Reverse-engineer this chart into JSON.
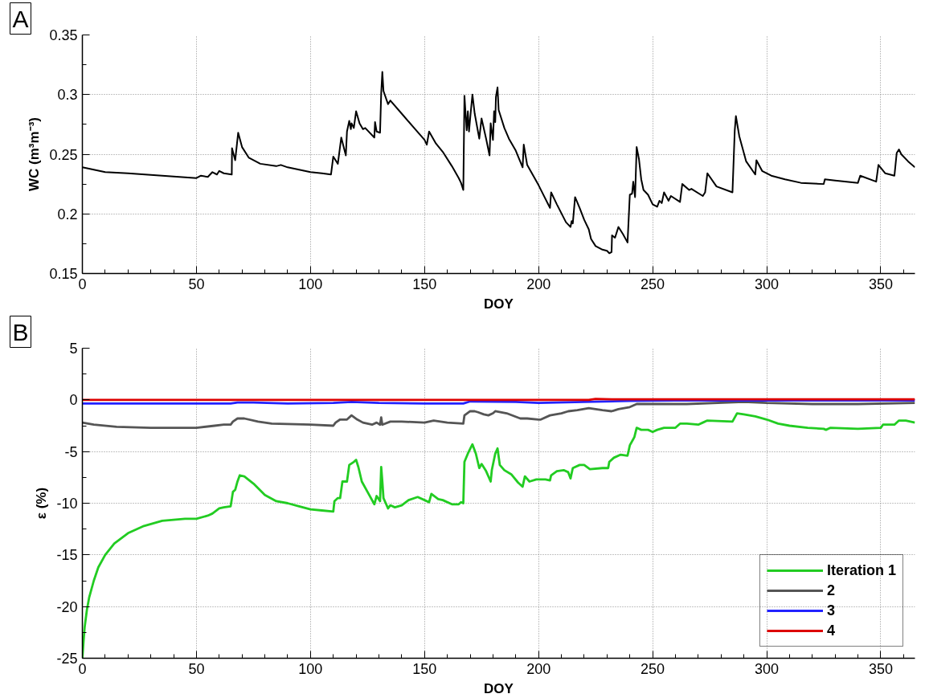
{
  "chart_data": [
    {
      "type": "line",
      "title": "A",
      "xlabel": "DOY",
      "ylabel": "WC (m³m⁻³)",
      "xlim": [
        0,
        365
      ],
      "ylim": [
        0.15,
        0.35
      ],
      "xticks": [
        0,
        {
          "value": 10,
          "label": null
        },
        {
          "value": 20,
          "label": null
        },
        {
          "value": 30,
          "label": null
        },
        {
          "value": 40,
          "label": null
        },
        50,
        {
          "value": 60,
          "label": null
        },
        {
          "value": 70,
          "label": null
        },
        {
          "value": 80,
          "label": null
        },
        {
          "value": 90,
          "label": null
        },
        100,
        {
          "value": 110,
          "label": null
        },
        {
          "value": 120,
          "label": null
        },
        {
          "value": 130,
          "label": null
        },
        {
          "value": 140,
          "label": null
        },
        150,
        {
          "value": 160,
          "label": null
        },
        {
          "value": 170,
          "label": null
        },
        {
          "value": 180,
          "label": null
        },
        {
          "value": 190,
          "label": null
        },
        200,
        {
          "value": 210,
          "label": null
        },
        {
          "value": 220,
          "label": null
        },
        {
          "value": 230,
          "label": null
        },
        {
          "value": 240,
          "label": null
        },
        250,
        {
          "value": 260,
          "label": null
        },
        {
          "value": 270,
          "label": null
        },
        {
          "value": 280,
          "label": null
        },
        {
          "value": 290,
          "label": null
        },
        300,
        {
          "value": 310,
          "label": null
        },
        {
          "value": 320,
          "label": null
        },
        {
          "value": 330,
          "label": null
        },
        {
          "value": 340,
          "label": null
        },
        350,
        {
          "value": 360,
          "label": null
        }
      ],
      "yticks": [
        0.15,
        {
          "value": 0.175,
          "label": null
        },
        0.2,
        {
          "value": 0.225,
          "label": null
        },
        0.25,
        {
          "value": 0.275,
          "label": null
        },
        0.3,
        {
          "value": 0.325,
          "label": null
        },
        0.35
      ],
      "grid": true,
      "x": [
        0,
        10,
        20,
        35,
        50,
        52,
        55,
        57,
        59,
        60,
        62,
        65.5,
        65.6,
        67,
        68.3,
        70,
        73,
        78,
        85,
        87,
        90,
        100,
        105,
        109,
        110,
        112,
        113.5,
        115.5,
        116,
        117,
        117.7,
        118,
        119,
        120,
        121.5,
        123,
        124,
        128,
        128.3,
        129,
        130.5,
        131,
        131.5,
        132,
        134,
        135,
        140,
        145,
        150,
        151,
        152,
        155,
        158,
        162,
        165,
        166,
        167,
        167.5,
        168,
        168.5,
        169,
        169.5,
        170.2,
        171,
        172,
        174,
        175,
        177,
        178.5,
        179,
        180,
        180.5,
        181,
        181.3,
        182,
        182.5,
        185,
        187,
        190,
        193,
        193.5,
        195,
        200,
        205,
        205.5,
        208,
        212,
        214,
        214.5,
        215,
        216,
        218,
        220,
        222,
        223,
        225,
        228,
        230,
        231,
        232,
        232.2,
        233.5,
        235,
        237,
        239,
        240,
        241,
        241.5,
        242,
        242.3,
        243,
        244,
        245,
        246,
        248,
        250,
        252,
        253,
        254,
        255,
        257,
        258,
        262,
        263,
        266,
        267,
        272,
        273,
        274,
        278,
        285,
        286,
        286.5,
        288,
        291,
        295,
        295.5,
        298,
        302,
        308,
        315,
        325,
        325.5,
        330,
        340,
        341,
        348,
        349,
        352,
        356,
        357,
        358,
        359,
        362,
        365
      ],
      "series": [
        {
          "color": "#000000",
          "values": [
            0.239,
            0.235,
            0.234,
            0.232,
            0.23,
            0.232,
            0.231,
            0.235,
            0.233,
            0.236,
            0.234,
            0.233,
            0.255,
            0.245,
            0.268,
            0.256,
            0.247,
            0.242,
            0.24,
            0.241,
            0.239,
            0.235,
            0.234,
            0.233,
            0.248,
            0.242,
            0.264,
            0.249,
            0.269,
            0.278,
            0.271,
            0.276,
            0.272,
            0.286,
            0.276,
            0.271,
            0.272,
            0.264,
            0.277,
            0.269,
            0.268,
            0.301,
            0.319,
            0.303,
            0.292,
            0.295,
            0.284,
            0.273,
            0.262,
            0.258,
            0.269,
            0.259,
            0.252,
            0.24,
            0.23,
            0.226,
            0.22,
            0.299,
            0.284,
            0.27,
            0.286,
            0.269,
            0.284,
            0.3,
            0.284,
            0.263,
            0.28,
            0.263,
            0.249,
            0.276,
            0.262,
            0.286,
            0.277,
            0.298,
            0.306,
            0.287,
            0.272,
            0.263,
            0.253,
            0.239,
            0.258,
            0.241,
            0.224,
            0.205,
            0.218,
            0.208,
            0.193,
            0.189,
            0.194,
            0.192,
            0.214,
            0.205,
            0.195,
            0.187,
            0.179,
            0.173,
            0.17,
            0.169,
            0.167,
            0.168,
            0.182,
            0.18,
            0.189,
            0.183,
            0.176,
            0.216,
            0.217,
            0.227,
            0.219,
            0.214,
            0.256,
            0.246,
            0.229,
            0.22,
            0.216,
            0.208,
            0.206,
            0.211,
            0.209,
            0.218,
            0.211,
            0.215,
            0.21,
            0.225,
            0.22,
            0.221,
            0.215,
            0.218,
            0.234,
            0.223,
            0.218,
            0.27,
            0.282,
            0.265,
            0.244,
            0.233,
            0.245,
            0.236,
            0.232,
            0.229,
            0.226,
            0.225,
            0.229,
            0.228,
            0.226,
            0.232,
            0.227,
            0.241,
            0.234,
            0.232,
            0.251,
            0.254,
            0.25,
            0.244,
            0.239
          ]
        }
      ]
    },
    {
      "type": "line",
      "title": "B",
      "xlabel": "DOY",
      "ylabel": "ε (%)",
      "xlim": [
        0,
        365
      ],
      "ylim": [
        -25,
        5
      ],
      "xticks": [
        0,
        {
          "value": 10,
          "label": null
        },
        {
          "value": 20,
          "label": null
        },
        {
          "value": 30,
          "label": null
        },
        {
          "value": 40,
          "label": null
        },
        50,
        {
          "value": 60,
          "label": null
        },
        {
          "value": 70,
          "label": null
        },
        {
          "value": 80,
          "label": null
        },
        {
          "value": 90,
          "label": null
        },
        100,
        {
          "value": 110,
          "label": null
        },
        {
          "value": 120,
          "label": null
        },
        {
          "value": 130,
          "label": null
        },
        {
          "value": 140,
          "label": null
        },
        150,
        {
          "value": 160,
          "label": null
        },
        {
          "value": 170,
          "label": null
        },
        {
          "value": 180,
          "label": null
        },
        {
          "value": 190,
          "label": null
        },
        200,
        {
          "value": 210,
          "label": null
        },
        {
          "value": 220,
          "label": null
        },
        {
          "value": 230,
          "label": null
        },
        {
          "value": 240,
          "label": null
        },
        250,
        {
          "value": 260,
          "label": null
        },
        {
          "value": 270,
          "label": null
        },
        {
          "value": 280,
          "label": null
        },
        {
          "value": 290,
          "label": null
        },
        300,
        {
          "value": 310,
          "label": null
        },
        {
          "value": 320,
          "label": null
        },
        {
          "value": 330,
          "label": null
        },
        {
          "value": 340,
          "label": null
        },
        350,
        {
          "value": 360,
          "label": null
        }
      ],
      "yticks": [
        -25,
        {
          "value": -22.5,
          "label": null
        },
        -20,
        {
          "value": -17.5,
          "label": null
        },
        -15,
        {
          "value": -12.5,
          "label": null
        },
        -10,
        {
          "value": -7.5,
          "label": null
        },
        -5,
        {
          "value": -2.5,
          "label": null
        },
        0,
        {
          "value": 2.5,
          "label": null
        },
        5
      ],
      "grid": true,
      "legend": "bottom right",
      "series": [
        {
          "name": "Iteration 1",
          "color": "#22cc22",
          "x": [
            0,
            0.5,
            1,
            2,
            3,
            5,
            7,
            10,
            14,
            20,
            27,
            35,
            45,
            50,
            55,
            57,
            60,
            62,
            65,
            65.5,
            66,
            67,
            68,
            69,
            71,
            75,
            80,
            85,
            90,
            95,
            100,
            105,
            110,
            110.5,
            112,
            113,
            114,
            116,
            117,
            119,
            120,
            121,
            122.5,
            125,
            128,
            129,
            130.5,
            131,
            131.5,
            132,
            133,
            134,
            135,
            137,
            140,
            143,
            147,
            150,
            152,
            153,
            156,
            158,
            162,
            165,
            166,
            167,
            167.5,
            169,
            171,
            172.5,
            174,
            175,
            177,
            179,
            179.5,
            181,
            182,
            183,
            185,
            188,
            191,
            193,
            194,
            196,
            199,
            203,
            205,
            205.5,
            208,
            211,
            213,
            214,
            215,
            218,
            220,
            222.5,
            228,
            230.5,
            231,
            233,
            236,
            239,
            240,
            241.5,
            242,
            243,
            245,
            248,
            250,
            252,
            255,
            260,
            262,
            265,
            270,
            272,
            274,
            285,
            287,
            290,
            295,
            300,
            305,
            310,
            318,
            325,
            326,
            328,
            340,
            350,
            351,
            356,
            358,
            361,
            365
          ],
          "values": [
            -25,
            -23.4,
            -22,
            -20.3,
            -19.1,
            -17.5,
            -16.2,
            -15,
            -13.9,
            -12.9,
            -12.2,
            -11.7,
            -11.5,
            -11.5,
            -11.2,
            -11,
            -10.5,
            -10.4,
            -10.3,
            -9.6,
            -8.9,
            -8.7,
            -7.9,
            -7.3,
            -7.4,
            -8.1,
            -9.2,
            -9.8,
            -10,
            -10.3,
            -10.6,
            -10.7,
            -10.8,
            -9.8,
            -9.5,
            -9.5,
            -7.9,
            -7.9,
            -6.3,
            -6,
            -5.8,
            -6.5,
            -7.9,
            -8.9,
            -10.1,
            -9.3,
            -9.8,
            -6.5,
            -7.9,
            -9.5,
            -10,
            -10.5,
            -10.2,
            -10.4,
            -10.2,
            -9.7,
            -9.4,
            -9.7,
            -9.9,
            -9.1,
            -9.6,
            -9.7,
            -10.1,
            -10.1,
            -9.9,
            -10,
            -6,
            -5.2,
            -4.3,
            -5.2,
            -6.6,
            -6.2,
            -6.9,
            -7.9,
            -6.8,
            -5.2,
            -4.7,
            -6.3,
            -6.8,
            -7.2,
            -8,
            -8.4,
            -7.4,
            -7.9,
            -7.7,
            -7.7,
            -7.8,
            -7.3,
            -6.9,
            -6.8,
            -7,
            -7.6,
            -6.6,
            -6.3,
            -6.3,
            -6.7,
            -6.6,
            -6.6,
            -6,
            -5.6,
            -5.3,
            -5.4,
            -4.4,
            -3.8,
            -3.6,
            -2.7,
            -2.9,
            -2.9,
            -3.1,
            -2.9,
            -2.7,
            -2.7,
            -2.3,
            -2.3,
            -2.4,
            -2.2,
            -2,
            -2.1,
            -1.3,
            -1.4,
            -1.6,
            -1.9,
            -2.3,
            -2.5,
            -2.7,
            -2.8,
            -2.9,
            -2.7,
            -2.8,
            -2.7,
            -2.4,
            -2.4,
            -2,
            -2,
            -2.2
          ]
        },
        {
          "name": "2",
          "color": "#555555",
          "x": [
            0,
            5,
            15,
            30,
            50,
            58,
            62,
            65,
            66,
            68,
            71,
            77,
            83,
            100,
            110,
            111,
            113,
            116,
            118,
            120.5,
            123,
            127,
            129,
            130.5,
            131,
            131.5,
            135,
            140,
            150,
            154,
            160,
            167,
            167.5,
            170,
            172,
            173.5,
            176,
            178,
            180,
            181,
            186,
            192,
            195,
            200,
            201,
            205,
            210,
            213,
            217,
            222,
            228,
            232,
            235,
            240,
            243,
            250,
            265,
            290,
            300,
            320,
            340,
            365
          ],
          "values": [
            -2.2,
            -2.4,
            -2.6,
            -2.7,
            -2.7,
            -2.5,
            -2.4,
            -2.4,
            -2.1,
            -1.8,
            -1.8,
            -2.1,
            -2.3,
            -2.4,
            -2.5,
            -2.2,
            -1.9,
            -1.9,
            -1.5,
            -1.9,
            -2.2,
            -2.4,
            -2.2,
            -2.4,
            -1.7,
            -2.4,
            -2.1,
            -2.1,
            -2.2,
            -2,
            -2.2,
            -2.3,
            -1.5,
            -1.1,
            -1.1,
            -1.2,
            -1.4,
            -1.5,
            -1.3,
            -1.1,
            -1.3,
            -1.8,
            -1.8,
            -1.9,
            -1.9,
            -1.5,
            -1.3,
            -1.1,
            -1,
            -0.8,
            -1,
            -1.1,
            -0.9,
            -0.7,
            -0.4,
            -0.4,
            -0.4,
            -0.2,
            -0.3,
            -0.4,
            -0.4,
            -0.3
          ]
        },
        {
          "name": "3",
          "color": "#2222ff",
          "x": [
            0,
            50,
            65,
            68,
            75,
            90,
            110,
            118,
            130,
            150,
            167,
            170,
            190,
            200,
            220,
            240,
            260,
            300,
            365
          ],
          "values": [
            -0.35,
            -0.35,
            -0.35,
            -0.25,
            -0.25,
            -0.35,
            -0.3,
            -0.2,
            -0.3,
            -0.35,
            -0.35,
            -0.15,
            -0.2,
            -0.3,
            -0.2,
            -0.1,
            -0.05,
            -0.05,
            -0.05
          ]
        },
        {
          "name": "4",
          "color": "#dd0000",
          "x": [
            0,
            222,
            225,
            232,
            365
          ],
          "values": [
            0,
            0,
            0.1,
            0.05,
            0.05
          ]
        }
      ]
    }
  ]
}
